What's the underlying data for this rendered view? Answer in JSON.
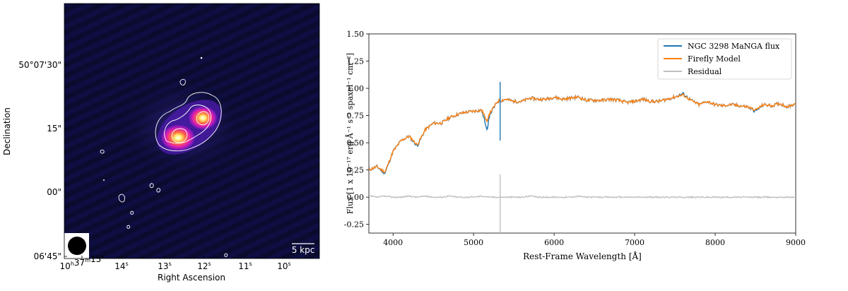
{
  "chart_data": [
    {
      "type": "image",
      "xlabel": "Right Ascension",
      "ylabel": "Declination",
      "x_ticks": [
        {
          "base": "10",
          "s1": "h",
          "mid": "37",
          "s2": "m",
          "num": "15",
          "s3": "s"
        },
        {
          "base": "",
          "s1": "",
          "mid": "",
          "s2": "",
          "num": "14",
          "s3": "s"
        },
        {
          "base": "",
          "s1": "",
          "mid": "",
          "s2": "",
          "num": "13",
          "s3": "s"
        },
        {
          "base": "",
          "s1": "",
          "mid": "",
          "s2": "",
          "num": "12",
          "s3": "s"
        },
        {
          "base": "",
          "s1": "",
          "mid": "",
          "s2": "",
          "num": "11",
          "s3": "s"
        },
        {
          "base": "",
          "s1": "",
          "mid": "",
          "s2": "",
          "num": "10",
          "s3": "s"
        }
      ],
      "y_ticks": [
        "50°07'30\"",
        "15\"",
        "00\"",
        "06'45\""
      ],
      "scalebar_label": "5 kpc",
      "colors": {
        "background": "#0a0a2a",
        "contour": "#ffffff"
      }
    },
    {
      "type": "line",
      "xlabel": "Rest-Frame Wavelength [Å]",
      "ylabel": "Flux [1 x 10⁻¹⁷ erg Å⁻¹ s⁻¹ spaxel⁻¹ cm⁻²]",
      "xlim": [
        3700,
        9000
      ],
      "ylim": [
        -0.33,
        1.5
      ],
      "x_ticks": [
        4000,
        5000,
        6000,
        7000,
        8000,
        9000
      ],
      "y_ticks": [
        -0.25,
        0.0,
        0.25,
        0.5,
        0.75,
        1.0,
        1.25,
        1.5
      ],
      "legend_position": "top-right",
      "series": [
        {
          "name": "NGC 3298 MaNGA flux",
          "color": "#1f77b4",
          "x": [
            3700,
            3800,
            3900,
            4000,
            4100,
            4200,
            4300,
            4400,
            4500,
            4600,
            4700,
            4800,
            4900,
            5000,
            5100,
            5170,
            5200,
            5300,
            5400,
            5500,
            5600,
            5700,
            5800,
            5900,
            6000,
            6100,
            6200,
            6300,
            6400,
            6500,
            6600,
            6700,
            6800,
            6900,
            7000,
            7100,
            7200,
            7300,
            7400,
            7500,
            7600,
            7700,
            7800,
            7900,
            8000,
            8100,
            8200,
            8300,
            8400,
            8500,
            8600,
            8700,
            8800,
            8900,
            9000
          ],
          "y": [
            0.25,
            0.28,
            0.22,
            0.42,
            0.52,
            0.56,
            0.47,
            0.62,
            0.68,
            0.68,
            0.73,
            0.76,
            0.78,
            0.79,
            0.8,
            0.62,
            0.76,
            0.88,
            0.9,
            0.88,
            0.88,
            0.91,
            0.9,
            0.9,
            0.92,
            0.9,
            0.91,
            0.92,
            0.89,
            0.89,
            0.89,
            0.9,
            0.89,
            0.87,
            0.88,
            0.9,
            0.88,
            0.88,
            0.9,
            0.92,
            0.95,
            0.89,
            0.85,
            0.88,
            0.85,
            0.84,
            0.85,
            0.84,
            0.83,
            0.79,
            0.85,
            0.84,
            0.86,
            0.83,
            0.86
          ]
        },
        {
          "name": "Firefly Model",
          "color": "#ff7f0e",
          "x": [
            3700,
            3800,
            3900,
            4000,
            4100,
            4200,
            4300,
            4400,
            4500,
            4600,
            4700,
            4800,
            4900,
            5000,
            5100,
            5170,
            5200,
            5300,
            5400,
            5500,
            5600,
            5700,
            5800,
            5900,
            6000,
            6100,
            6200,
            6300,
            6400,
            6500,
            6600,
            6700,
            6800,
            6900,
            7000,
            7100,
            7200,
            7300,
            7400,
            7500,
            7600,
            7700,
            7800,
            7900,
            8000,
            8100,
            8200,
            8300,
            8400,
            8500,
            8600,
            8700,
            8800,
            8900,
            9000
          ],
          "y": [
            0.25,
            0.28,
            0.23,
            0.42,
            0.52,
            0.56,
            0.48,
            0.62,
            0.68,
            0.68,
            0.73,
            0.76,
            0.78,
            0.79,
            0.8,
            0.7,
            0.77,
            0.88,
            0.9,
            0.88,
            0.88,
            0.91,
            0.9,
            0.9,
            0.92,
            0.9,
            0.91,
            0.92,
            0.89,
            0.89,
            0.89,
            0.9,
            0.89,
            0.87,
            0.88,
            0.9,
            0.88,
            0.88,
            0.9,
            0.92,
            0.94,
            0.89,
            0.85,
            0.88,
            0.85,
            0.84,
            0.85,
            0.84,
            0.83,
            0.8,
            0.85,
            0.84,
            0.86,
            0.83,
            0.86
          ]
        },
        {
          "name": "Residual",
          "color": "#c0c0c0",
          "x": [
            3700,
            3800,
            3900,
            4000,
            4100,
            4200,
            4300,
            4400,
            4500,
            4600,
            4700,
            4800,
            4900,
            5000,
            5100,
            5200,
            5300,
            5400,
            5500,
            5600,
            5700,
            5800,
            5900,
            6000,
            6100,
            6200,
            6300,
            6400,
            6500,
            6600,
            6700,
            6800,
            6900,
            7000,
            7100,
            7200,
            7300,
            7400,
            7500,
            7600,
            7700,
            7800,
            7900,
            8000,
            8100,
            8200,
            8300,
            8400,
            8500,
            8600,
            8700,
            8800,
            8900,
            9000
          ],
          "y": [
            0.01,
            0.0,
            0.01,
            0.0,
            0.0,
            0.01,
            0.0,
            0.01,
            0.0,
            0.0,
            0.01,
            0.0,
            0.0,
            0.0,
            0.01,
            0.0,
            0.0,
            0.0,
            0.0,
            0.0,
            0.01,
            0.0,
            0.0,
            0.0,
            0.0,
            0.0,
            0.01,
            0.0,
            0.0,
            0.0,
            0.0,
            0.0,
            0.0,
            0.0,
            0.0,
            0.0,
            0.0,
            0.0,
            0.0,
            0.0,
            0.0,
            0.0,
            0.0,
            0.0,
            0.0,
            0.0,
            0.0,
            0.0,
            0.0,
            0.0,
            0.0,
            0.0,
            0.0,
            0.0
          ]
        }
      ]
    }
  ]
}
